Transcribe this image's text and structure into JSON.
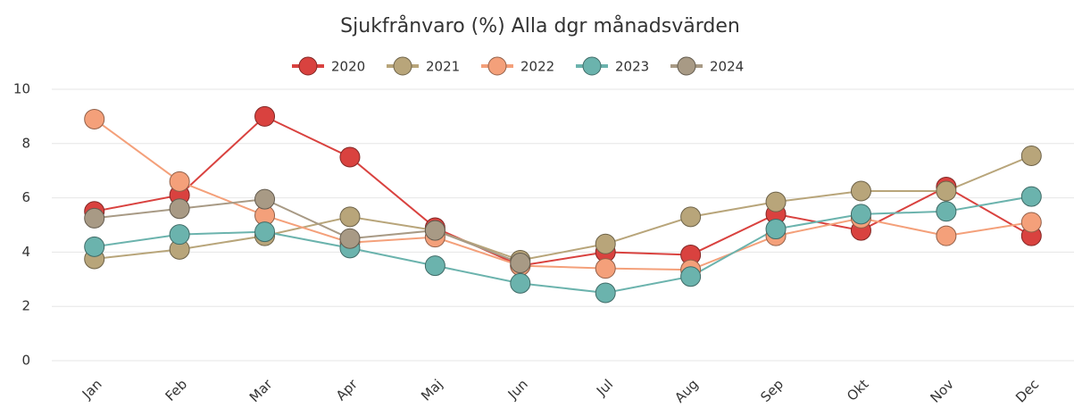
{
  "chart_data": {
    "type": "line",
    "title": "Sjukfrånvaro (%) Alla dgr månadsvärden",
    "categories": [
      "Jan",
      "Feb",
      "Mar",
      "Apr",
      "Maj",
      "Jun",
      "Jul",
      "Aug",
      "Sep",
      "Okt",
      "Nov",
      "Dec"
    ],
    "series": [
      {
        "name": "2020",
        "color": "#d9423f",
        "values": [
          5.5,
          6.1,
          9.0,
          7.5,
          4.9,
          3.5,
          4.0,
          3.9,
          5.4,
          4.8,
          6.4,
          4.6
        ]
      },
      {
        "name": "2021",
        "color": "#b8a57a",
        "values": [
          3.75,
          4.1,
          4.6,
          5.3,
          4.8,
          3.7,
          4.3,
          5.3,
          5.85,
          6.25,
          6.25,
          7.55
        ]
      },
      {
        "name": "2022",
        "color": "#f4a07a",
        "values": [
          8.9,
          6.6,
          5.35,
          4.35,
          4.55,
          3.5,
          3.4,
          3.35,
          4.6,
          5.25,
          4.6,
          5.1
        ]
      },
      {
        "name": "2023",
        "color": "#6bb3ad",
        "values": [
          4.2,
          4.65,
          4.75,
          4.15,
          3.5,
          2.85,
          2.5,
          3.1,
          4.85,
          5.4,
          5.5,
          6.05
        ]
      },
      {
        "name": "2024",
        "color": "#a89a85",
        "values": [
          5.25,
          5.6,
          5.95,
          4.5,
          4.8,
          3.6,
          null,
          null,
          null,
          null,
          null,
          null
        ]
      }
    ],
    "ylim": [
      0,
      10
    ],
    "yticks": [
      0,
      2,
      4,
      6,
      8,
      10
    ],
    "grid": true,
    "legend": "top"
  }
}
